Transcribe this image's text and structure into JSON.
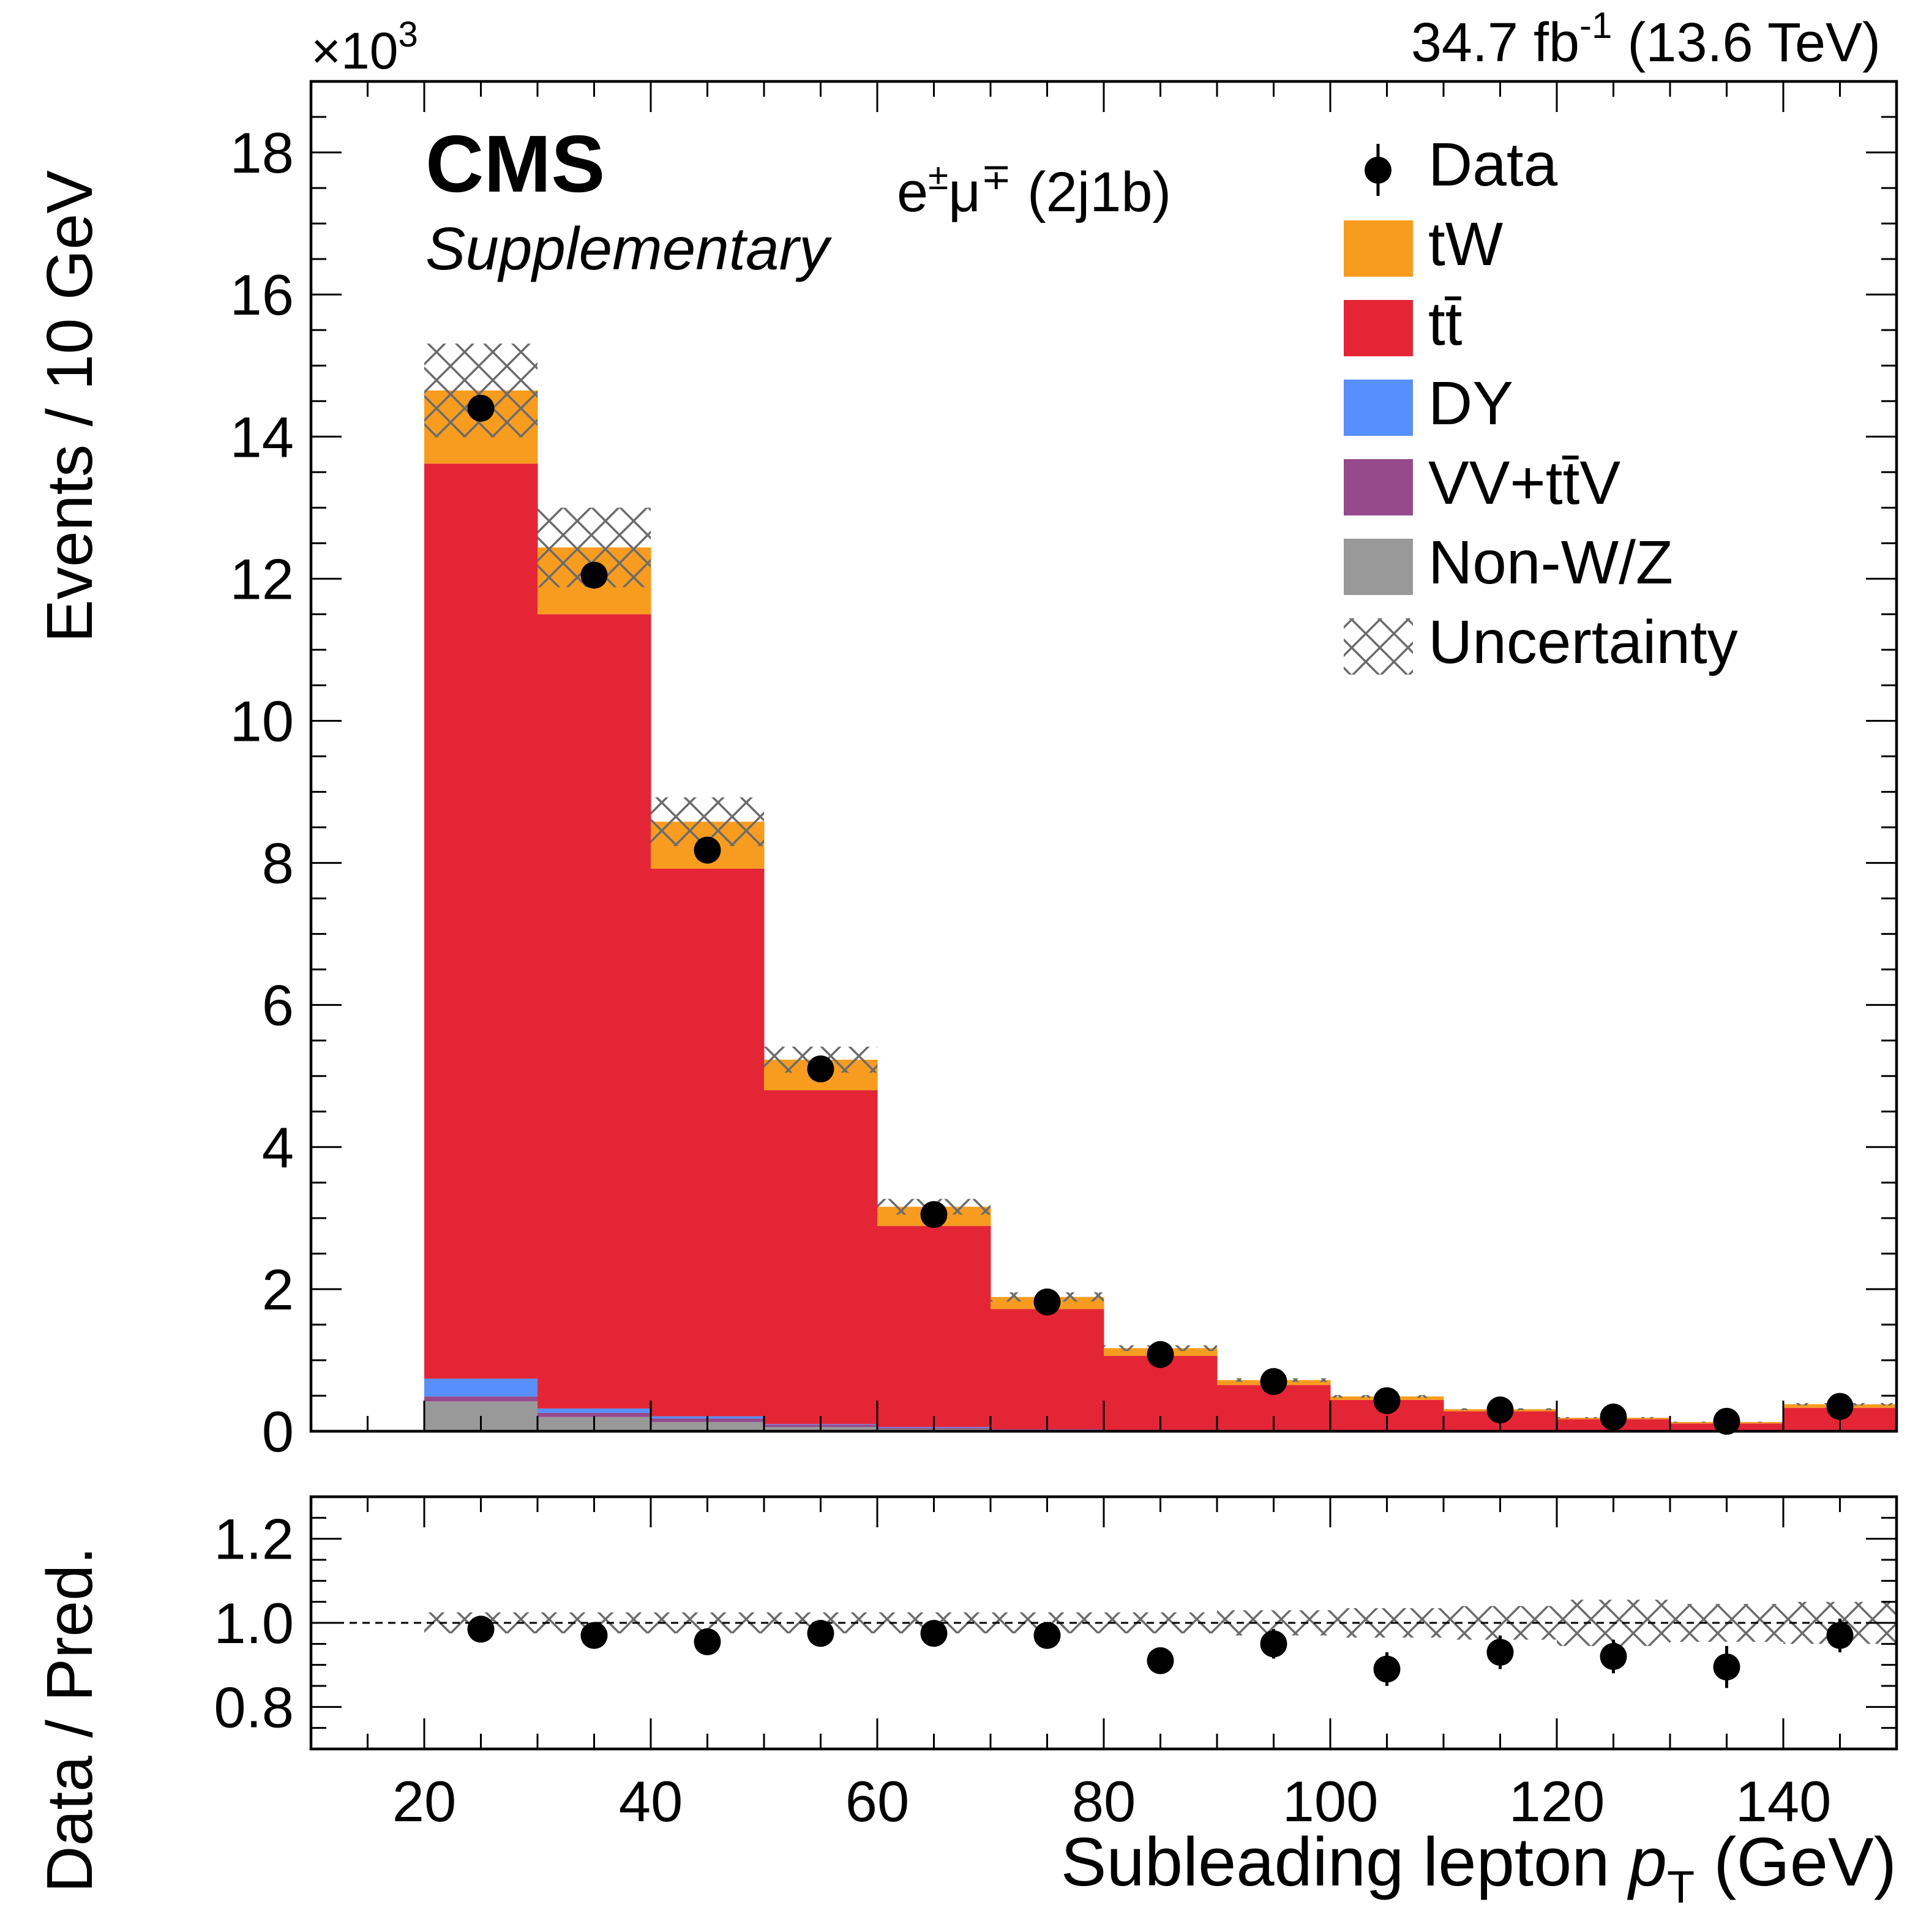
{
  "chart_data": [
    {
      "type": "bar",
      "stacked": true,
      "panel": "main",
      "bin_edges": [
        20,
        30,
        40,
        50,
        60,
        70,
        80,
        90,
        100,
        110,
        120,
        130,
        140,
        150
      ],
      "xlim": [
        10,
        150
      ],
      "ylim": [
        0,
        19
      ],
      "y_multiplier": "×10",
      "y_multiplier_exp": "3",
      "ylabel": "Events / 10 GeV",
      "y_ticks": [
        0,
        2,
        4,
        6,
        8,
        10,
        12,
        14,
        16,
        18
      ],
      "y_tick_labels": [
        "0",
        "2",
        "4",
        "6",
        "8",
        "10",
        "12",
        "14",
        "16",
        "18"
      ],
      "experiment": "CMS",
      "status": "Supplementary",
      "lumi_prefix": "34.7 fb",
      "lumi_exp": "-1",
      "lumi_suffix": "(13.6 TeV)",
      "channel_lepton1": "e",
      "channel_sign1": "±",
      "channel_lepton2": "μ",
      "channel_sign2": "∓",
      "channel_suffix": "(2j1b)",
      "legend_position": "top-right",
      "series": [
        {
          "name": "Non-W/Z",
          "color": "#999999",
          "values": [
            0.42,
            0.2,
            0.13,
            0.06,
            0.03,
            0.02,
            0.01,
            0.01,
            0.01,
            0.0,
            0.0,
            0.0,
            0.01
          ]
        },
        {
          "name": "VV+tt̄V",
          "color": "#964A8B",
          "values": [
            0.07,
            0.06,
            0.05,
            0.03,
            0.02,
            0.01,
            0.01,
            0.01,
            0.0,
            0.0,
            0.0,
            0.0,
            0.01
          ]
        },
        {
          "name": "DY",
          "color": "#5790FC",
          "values": [
            0.25,
            0.06,
            0.03,
            0.01,
            0.01,
            0.0,
            0.0,
            0.0,
            0.0,
            0.0,
            0.0,
            0.0,
            0.0
          ]
        },
        {
          "name": "tt̄",
          "color": "#E42536",
          "values": [
            12.88,
            11.18,
            7.71,
            4.7,
            2.83,
            1.69,
            1.04,
            0.63,
            0.43,
            0.28,
            0.17,
            0.11,
            0.31
          ]
        },
        {
          "name": "tW",
          "color": "#F89C20",
          "values": [
            1.03,
            0.94,
            0.66,
            0.43,
            0.27,
            0.17,
            0.11,
            0.07,
            0.05,
            0.03,
            0.02,
            0.02,
            0.05
          ]
        }
      ],
      "uncertainty": {
        "name": "Uncertainty",
        "rel_band": [
          0.045,
          0.045,
          0.04,
          0.035,
          0.035,
          0.035,
          0.035,
          0.035,
          0.04,
          0.045,
          0.05,
          0.045,
          0.045
        ]
      },
      "data": {
        "name": "Data",
        "x": [
          25,
          35,
          45,
          55,
          65,
          75,
          85,
          95,
          105,
          115,
          125,
          135,
          145
        ],
        "y": [
          14.4,
          12.05,
          8.18,
          5.1,
          3.05,
          1.82,
          1.08,
          0.7,
          0.43,
          0.3,
          0.2,
          0.14,
          0.35
        ]
      }
    },
    {
      "type": "scatter",
      "panel": "ratio",
      "xlabel_prefix": "Subleading lepton ",
      "xlabel_var": "p",
      "xlabel_sub": "T",
      "xlabel_suffix": " (GeV)",
      "ylabel": "Data / Pred.",
      "xlim": [
        10,
        150
      ],
      "ylim": [
        0.7,
        1.3
      ],
      "x_ticks": [
        20,
        40,
        60,
        80,
        100,
        120,
        140
      ],
      "x_tick_labels": [
        "20",
        "40",
        "60",
        "80",
        "100",
        "120",
        "140"
      ],
      "y_ticks": [
        0.8,
        1.0,
        1.2
      ],
      "y_tick_labels": [
        "0.8",
        "1.0",
        "1.2"
      ],
      "reference_line": 1.0,
      "x": [
        25,
        35,
        45,
        55,
        65,
        75,
        85,
        95,
        105,
        115,
        125,
        135,
        145
      ],
      "y": [
        0.985,
        0.97,
        0.955,
        0.975,
        0.975,
        0.97,
        0.91,
        0.95,
        0.89,
        0.93,
        0.92,
        0.895,
        0.97
      ],
      "y_err": [
        0.01,
        0.01,
        0.015,
        0.015,
        0.02,
        0.025,
        0.03,
        0.035,
        0.04,
        0.04,
        0.04,
        0.05,
        0.04
      ],
      "band_rel": [
        0.025,
        0.025,
        0.025,
        0.025,
        0.025,
        0.025,
        0.025,
        0.03,
        0.035,
        0.04,
        0.055,
        0.045,
        0.05
      ]
    }
  ]
}
